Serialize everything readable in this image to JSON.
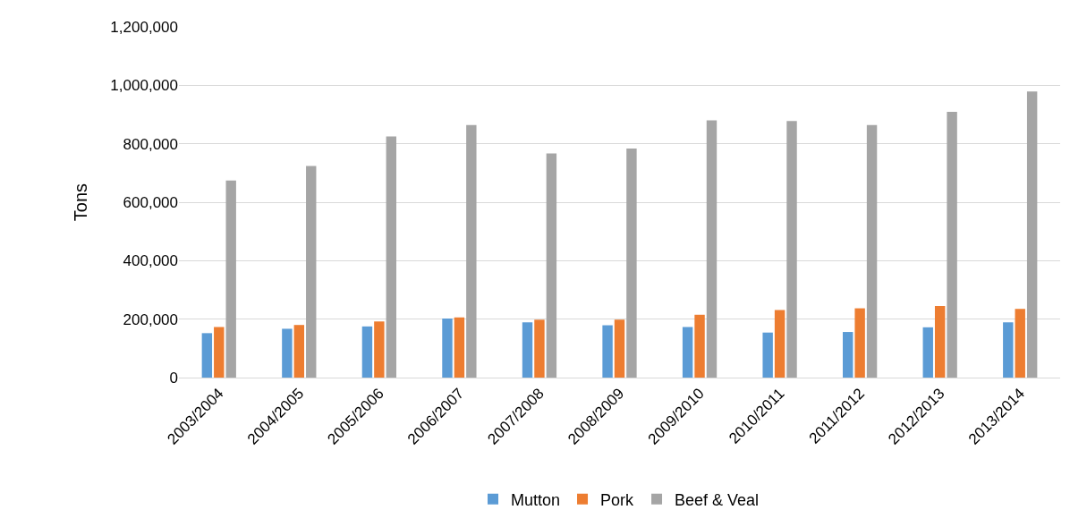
{
  "chart_data": {
    "type": "bar",
    "ylabel": "Tons",
    "categories": [
      "2003/2004",
      "2004/2005",
      "2005/2006",
      "2006/2007",
      "2007/2008",
      "2008/2009",
      "2009/2010",
      "2010/2011",
      "2011/2012",
      "2012/2013",
      "2013/2014"
    ],
    "series": [
      {
        "name": "Mutton",
        "color": "#5b9bd5",
        "values": [
          152000,
          167000,
          175000,
          202000,
          189000,
          179000,
          173000,
          154000,
          156000,
          172000,
          189000
        ]
      },
      {
        "name": "Pork",
        "color": "#ed7d31",
        "values": [
          173000,
          180000,
          192000,
          206000,
          198000,
          198000,
          215000,
          231000,
          237000,
          245000,
          235000
        ]
      },
      {
        "name": "Beef & Veal",
        "color": "#a5a5a5",
        "values": [
          674000,
          724000,
          825000,
          864000,
          767000,
          784000,
          880000,
          878000,
          864000,
          909000,
          979000
        ]
      }
    ],
    "ylim": [
      0,
      1200000
    ],
    "yticks": [
      {
        "value": 0,
        "label": "0"
      },
      {
        "value": 200000,
        "label": "200,000"
      },
      {
        "value": 400000,
        "label": "400,000"
      },
      {
        "value": 600000,
        "label": "600,000"
      },
      {
        "value": 800000,
        "label": "800,000"
      },
      {
        "value": 1000000,
        "label": "1,000,000"
      },
      {
        "value": 1200000,
        "label": "1,200,000"
      }
    ],
    "grid": "y",
    "legend": "bottom"
  }
}
